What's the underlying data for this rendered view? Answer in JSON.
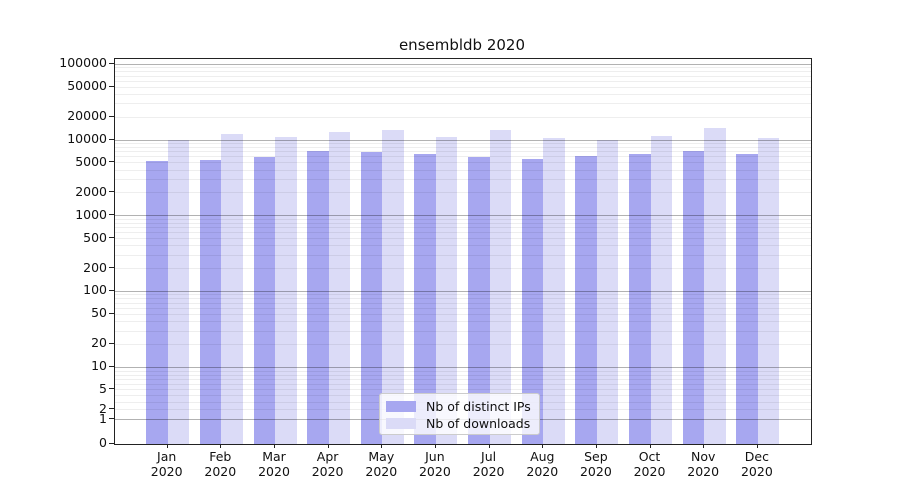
{
  "chart_data": {
    "type": "bar",
    "title": "ensembldb 2020",
    "categories": [
      "Jan",
      "Feb",
      "Mar",
      "Apr",
      "May",
      "Jun",
      "Jul",
      "Aug",
      "Sep",
      "Oct",
      "Nov",
      "Dec"
    ],
    "year_label": "2020",
    "series": [
      {
        "name": "Nb of distinct IPs",
        "color": "#a7a7f0",
        "values": [
          5200,
          5300,
          5900,
          7000,
          6800,
          6400,
          5800,
          5500,
          6100,
          6500,
          7000,
          6400
        ]
      },
      {
        "name": "Nb of downloads",
        "color": "#dbdbf7",
        "values": [
          9900,
          12000,
          10700,
          12500,
          13200,
          10800,
          13200,
          10400,
          9800,
          11200,
          14300,
          10600
        ]
      }
    ],
    "yticks": [
      0,
      1,
      2,
      5,
      10,
      20,
      50,
      100,
      200,
      500,
      1000,
      2000,
      5000,
      10000,
      20000,
      50000,
      100000
    ],
    "ylim": [
      0,
      115000
    ],
    "yscale": "symlog",
    "xlabel": "",
    "ylabel": "",
    "grid": true,
    "legend_position": "lower-center"
  }
}
